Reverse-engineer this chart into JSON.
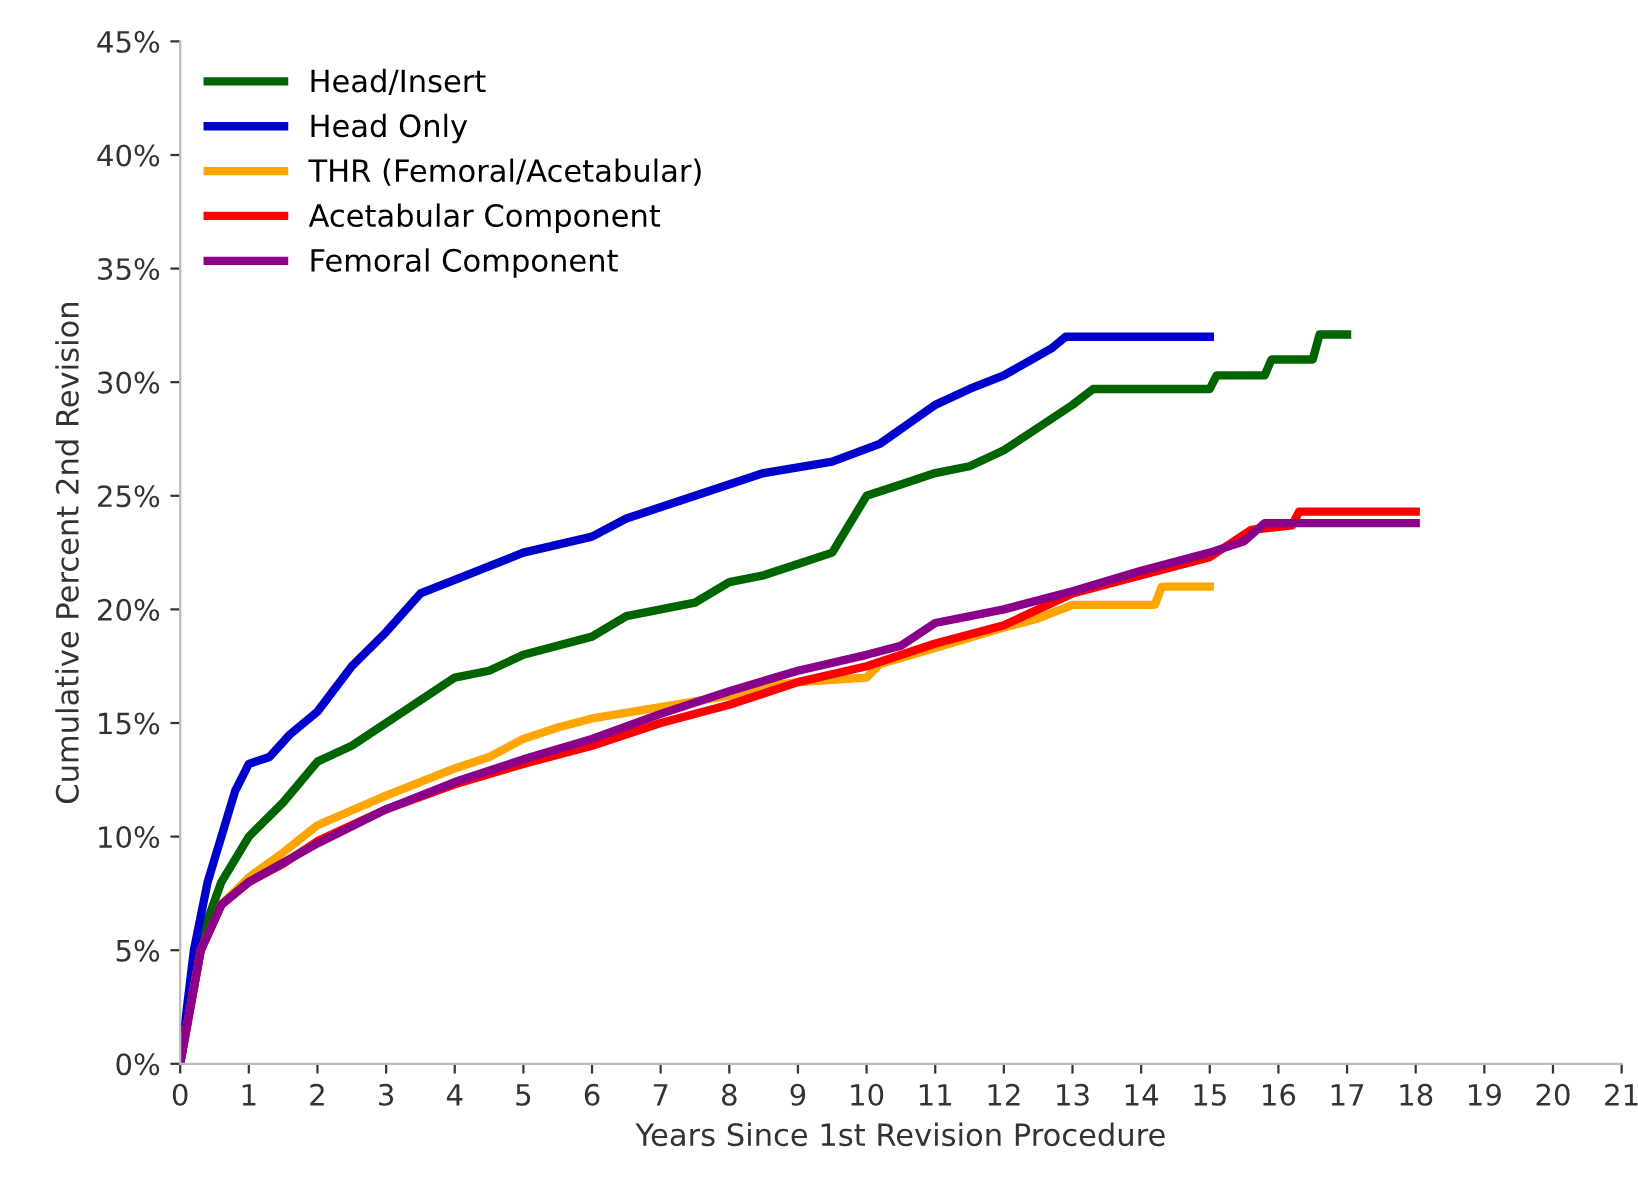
{
  "chart_data": {
    "type": "line",
    "xlabel": "Years Since 1st Revision Procedure",
    "ylabel": "Cumulative Percent 2nd Revision",
    "xlim": [
      0,
      21
    ],
    "xticks": [
      0,
      1,
      2,
      3,
      4,
      5,
      6,
      7,
      8,
      9,
      10,
      11,
      12,
      13,
      14,
      15,
      16,
      17,
      18,
      19,
      20,
      21
    ],
    "ylim": [
      0,
      45
    ],
    "yticks": [
      {
        "value": 0,
        "label": "0%"
      },
      {
        "value": 5,
        "label": "5%"
      },
      {
        "value": 10,
        "label": "10%"
      },
      {
        "value": 15,
        "label": "15%"
      },
      {
        "value": 20,
        "label": "20%"
      },
      {
        "value": 25,
        "label": "25%"
      },
      {
        "value": 30,
        "label": "30%"
      },
      {
        "value": 35,
        "label": "35%"
      },
      {
        "value": 40,
        "label": "40%"
      },
      {
        "value": 45,
        "label": "45%"
      }
    ],
    "grid": false,
    "legend": "top left",
    "marker": "none",
    "line_style": "solid",
    "series": [
      {
        "name": "Head/Insert",
        "color": "#006400",
        "x": [
          0,
          0.3,
          0.6,
          1,
          1.5,
          2,
          2.5,
          3,
          3.5,
          4,
          4.5,
          5,
          6,
          6.5,
          7,
          7.5,
          8,
          8.5,
          9,
          9.5,
          10,
          10.5,
          11,
          11.5,
          12,
          12.5,
          13,
          13.3,
          15,
          15.1,
          15.8,
          15.9,
          16.5,
          16.6,
          17
        ],
        "values": [
          0,
          5.5,
          8,
          10,
          11.5,
          13.3,
          14,
          15,
          16,
          17,
          17.3,
          18,
          18.8,
          19.7,
          20,
          20.3,
          21.2,
          21.5,
          22,
          22.5,
          25,
          25.5,
          26,
          26.3,
          27,
          28,
          29,
          29.7,
          29.7,
          30.3,
          30.3,
          31,
          31,
          32.1,
          32.1
        ]
      },
      {
        "name": "Head Only",
        "color": "#0000cd",
        "x": [
          0,
          0.2,
          0.4,
          0.6,
          0.8,
          1,
          1.3,
          1.6,
          2,
          2.5,
          3,
          3.5,
          4,
          5,
          6,
          6.5,
          7.5,
          8.5,
          9.5,
          10.2,
          11,
          11.5,
          12,
          12.7,
          12.9,
          15
        ],
        "values": [
          0,
          5,
          8,
          10,
          12,
          13.2,
          13.5,
          14.5,
          15.5,
          17.5,
          19,
          20.7,
          21.3,
          22.5,
          23.2,
          24,
          25,
          26,
          26.5,
          27.3,
          29,
          29.7,
          30.3,
          31.5,
          32,
          32
        ]
      },
      {
        "name": "THR (Femoral/Acetabular)",
        "color": "#ffa500",
        "x": [
          0,
          0.3,
          0.6,
          1,
          1.5,
          2,
          3,
          4,
          4.5,
          5,
          5.5,
          6,
          7,
          8,
          8.5,
          9,
          10,
          10.2,
          11,
          12,
          12.5,
          13,
          14.2,
          14.3,
          15
        ],
        "values": [
          0,
          5,
          7,
          8.2,
          9.3,
          10.5,
          11.8,
          13,
          13.5,
          14.3,
          14.8,
          15.2,
          15.7,
          16.2,
          16.6,
          16.8,
          17,
          17.6,
          18.3,
          19.2,
          19.6,
          20.2,
          20.2,
          21,
          21
        ]
      },
      {
        "name": "Acetabular Component",
        "color": "#ff0000",
        "x": [
          0,
          0.3,
          0.6,
          1,
          1.5,
          2,
          3,
          4,
          5,
          6,
          7,
          8,
          9,
          10,
          11,
          12,
          12.5,
          13,
          14,
          15,
          15.6,
          16.2,
          16.3,
          18
        ],
        "values": [
          0,
          5,
          7,
          8,
          8.8,
          9.8,
          11.2,
          12.3,
          13.2,
          14,
          15,
          15.8,
          16.8,
          17.5,
          18.5,
          19.3,
          20,
          20.7,
          21.5,
          22.3,
          23.5,
          23.7,
          24.3,
          24.3
        ]
      },
      {
        "name": "Femoral Component",
        "color": "#8b008b",
        "x": [
          0,
          0.3,
          0.6,
          1,
          2,
          3,
          4,
          5,
          6,
          7,
          8,
          9,
          10,
          10.5,
          11,
          12,
          13,
          14,
          15,
          15.5,
          15.8,
          18
        ],
        "values": [
          0,
          5,
          7,
          8,
          9.7,
          11.2,
          12.4,
          13.4,
          14.3,
          15.4,
          16.4,
          17.3,
          18,
          18.4,
          19.4,
          20,
          20.8,
          21.7,
          22.5,
          23,
          23.8,
          23.8
        ]
      }
    ]
  }
}
